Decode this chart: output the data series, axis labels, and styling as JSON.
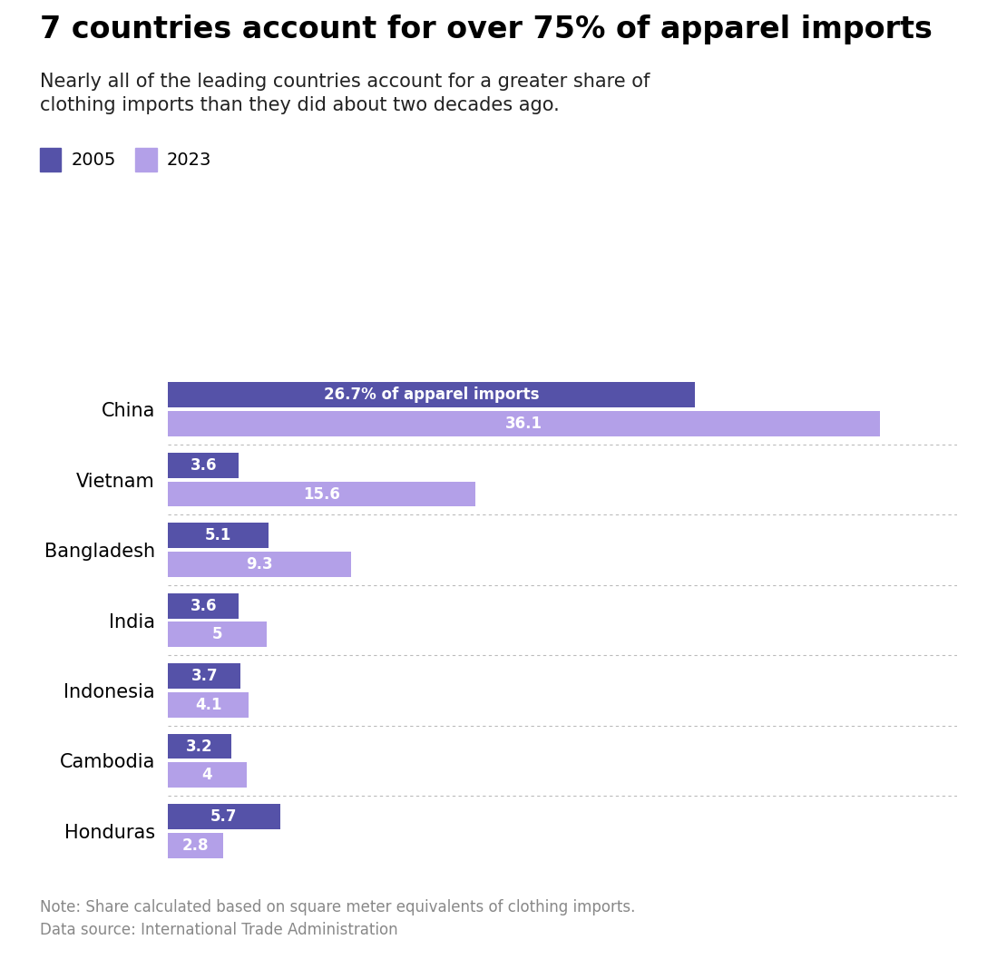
{
  "title": "7 countries account for over 75% of apparel imports",
  "subtitle": "Nearly all of the leading countries account for a greater share of\nclothing imports than they did about two decades ago.",
  "note": "Note: Share calculated based on square meter equivalents of clothing imports.",
  "source": "Data source: International Trade Administration",
  "categories": [
    "China",
    "Vietnam",
    "Bangladesh",
    "India",
    "Indonesia",
    "Cambodia",
    "Honduras"
  ],
  "values_2005": [
    26.7,
    3.6,
    5.1,
    3.6,
    3.7,
    3.2,
    5.7
  ],
  "values_2023": [
    36.1,
    15.6,
    9.3,
    5.0,
    4.1,
    4.0,
    2.8
  ],
  "labels_2005": [
    "26.7% of apparel imports",
    "3.6",
    "5.1",
    "3.6",
    "3.7",
    "3.2",
    "5.7"
  ],
  "labels_2023": [
    "36.1",
    "15.6",
    "9.3",
    "5",
    "4.1",
    "4",
    "2.8"
  ],
  "color_2005": "#5552a8",
  "color_2023": "#b3a0e8",
  "background_color": "#ffffff",
  "bar_height": 0.36,
  "bar_gap": 0.05,
  "legend_2005": "2005",
  "legend_2023": "2023",
  "xlim": [
    0,
    40
  ],
  "title_fontsize": 24,
  "subtitle_fontsize": 15,
  "label_fontsize": 12,
  "country_fontsize": 15,
  "note_fontsize": 12
}
